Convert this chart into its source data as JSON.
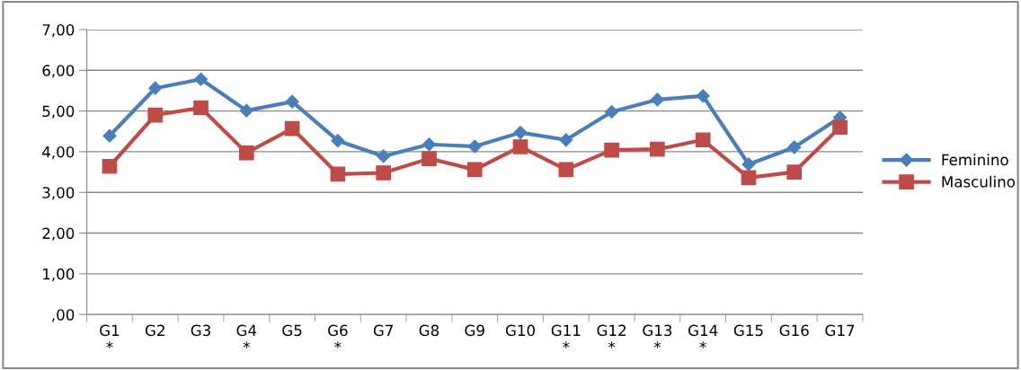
{
  "chart_data": {
    "type": "line",
    "categories": [
      "G1\n*",
      "G2",
      "G3",
      "G4\n*",
      "G5",
      "G6\n*",
      "G7",
      "G8",
      "G9",
      "G10",
      "G11\n*",
      "G12\n*",
      "G13\n*",
      "G14\n*",
      "G15",
      "G16",
      "G17"
    ],
    "series": [
      {
        "name": "Feminino",
        "color": "#4a7ebb",
        "marker": "diamond",
        "values": [
          4.39,
          5.56,
          5.78,
          5.01,
          5.23,
          4.27,
          3.89,
          4.18,
          4.13,
          4.47,
          4.29,
          4.98,
          5.28,
          5.37,
          3.69,
          4.11,
          4.84
        ]
      },
      {
        "name": "Masculino",
        "color": "#be4b48",
        "marker": "square",
        "values": [
          3.64,
          4.9,
          5.08,
          3.97,
          4.57,
          3.45,
          3.48,
          3.83,
          3.56,
          4.12,
          3.56,
          4.04,
          4.06,
          4.29,
          3.36,
          3.5,
          4.6
        ]
      }
    ],
    "ylim": [
      0,
      7
    ],
    "yticks": [
      {
        "value": 0,
        "label": ",00"
      },
      {
        "value": 1,
        "label": "1,00"
      },
      {
        "value": 2,
        "label": "2,00"
      },
      {
        "value": 3,
        "label": "3,00"
      },
      {
        "value": 4,
        "label": "4,00"
      },
      {
        "value": 5,
        "label": "5,00"
      },
      {
        "value": 6,
        "label": "6,00"
      },
      {
        "value": 7,
        "label": "7,00"
      }
    ],
    "grid": "y",
    "legend": "right"
  }
}
